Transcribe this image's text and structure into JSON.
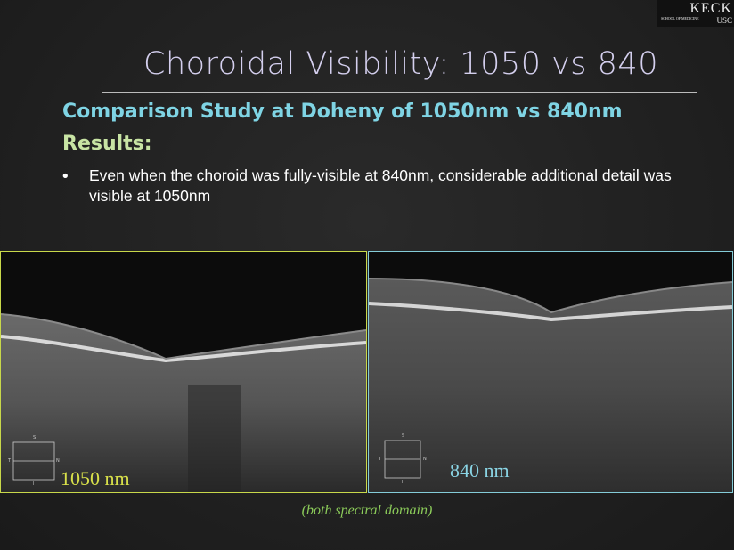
{
  "logo": {
    "name": "KECK",
    "school": "SCHOOL OF MEDICINE",
    "university": "USC"
  },
  "title": "Choroidal Visibility: 1050 vs 840",
  "subtitle": "Comparison Study at Doheny of 1050nm vs 840nm",
  "heading": "Results:",
  "bullets": [
    "Even when the choroid was fully-visible at 840nm, considerable additional detail was visible at 1050nm"
  ],
  "images": [
    {
      "label": "1050 nm",
      "orientation": [
        "S",
        "T",
        "N",
        "I"
      ]
    },
    {
      "label": "840 nm",
      "orientation": [
        "S",
        "T",
        "N",
        "I"
      ]
    }
  ],
  "caption": "(both spectral domain)"
}
